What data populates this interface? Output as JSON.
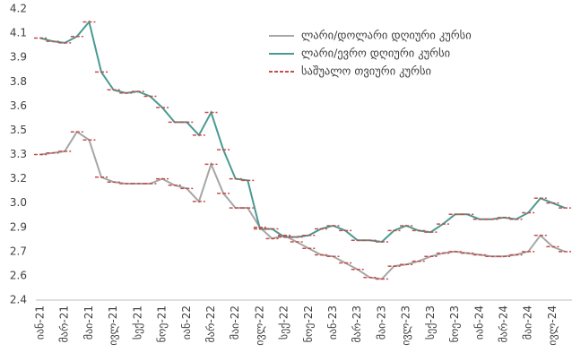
{
  "chart_data": {
    "type": "line",
    "categories": [
      "იან-21",
      null,
      "მარ-21",
      null,
      "მაი-21",
      null,
      "ივლ-21",
      null,
      "სექ-21",
      null,
      "ნოე-21",
      null,
      "იან-22",
      null,
      "მარ-22",
      null,
      "მაი-22",
      null,
      "ივლ-22",
      null,
      "სექ-22",
      null,
      "ნოე-22",
      null,
      "იან-23",
      null,
      "მარ-23",
      null,
      "მაი-23",
      null,
      "ივლ-23",
      null,
      "სექ-23",
      null,
      "ნოე-23",
      null,
      "იან-24",
      null,
      "მარ-24",
      null,
      "მაი-24",
      null,
      "ივლ-24",
      null
    ],
    "series": [
      {
        "name": "ლარი/დოლარი დღიური კურსი",
        "color": "#a6a6a6",
        "values": [
          3.3,
          3.31,
          3.32,
          3.44,
          3.39,
          3.16,
          3.13,
          3.12,
          3.12,
          3.12,
          3.15,
          3.11,
          3.09,
          3.01,
          3.24,
          3.06,
          2.97,
          2.97,
          2.85,
          2.78,
          2.8,
          2.76,
          2.72,
          2.68,
          2.67,
          2.63,
          2.59,
          2.54,
          2.53,
          2.61,
          2.62,
          2.64,
          2.67,
          2.69,
          2.7,
          2.69,
          2.68,
          2.67,
          2.67,
          2.68,
          2.7,
          2.8,
          2.73,
          2.7
        ]
      },
      {
        "name": "ლარი/ევრო დღიური კურსი",
        "color": "#4a9a93",
        "values": [
          4.02,
          4.0,
          3.99,
          4.03,
          4.12,
          3.81,
          3.7,
          3.68,
          3.69,
          3.66,
          3.59,
          3.5,
          3.5,
          3.42,
          3.56,
          3.33,
          3.15,
          3.14,
          2.84,
          2.84,
          2.79,
          2.79,
          2.8,
          2.84,
          2.86,
          2.83,
          2.77,
          2.77,
          2.76,
          2.83,
          2.86,
          2.83,
          2.82,
          2.87,
          2.93,
          2.93,
          2.9,
          2.9,
          2.91,
          2.9,
          2.94,
          3.03,
          3.0,
          2.97
        ]
      },
      {
        "name": "საშუალო თვიური კურსი",
        "color": "#c0504d",
        "dashed": true,
        "values": [
          3.3,
          3.31,
          3.32,
          3.44,
          3.39,
          3.16,
          3.13,
          3.12,
          3.12,
          3.12,
          3.15,
          3.11,
          3.09,
          3.01,
          3.24,
          3.06,
          2.97,
          2.97,
          2.85,
          2.78,
          2.8,
          2.76,
          2.72,
          2.68,
          2.67,
          2.63,
          2.59,
          2.54,
          2.53,
          2.61,
          2.62,
          2.64,
          2.67,
          2.69,
          2.7,
          2.69,
          2.68,
          2.67,
          2.67,
          2.68,
          2.7,
          2.8,
          2.73,
          2.7
        ],
        "values_eur": [
          4.02,
          4.0,
          3.99,
          4.03,
          4.12,
          3.81,
          3.7,
          3.68,
          3.69,
          3.66,
          3.59,
          3.5,
          3.5,
          3.42,
          3.56,
          3.33,
          3.15,
          3.14,
          2.84,
          2.84,
          2.79,
          2.79,
          2.8,
          2.84,
          2.86,
          2.83,
          2.77,
          2.77,
          2.76,
          2.83,
          2.86,
          2.83,
          2.82,
          2.87,
          2.93,
          2.93,
          2.9,
          2.9,
          2.91,
          2.9,
          2.94,
          3.03,
          3.0,
          2.97
        ]
      }
    ],
    "ylim": [
      2.4,
      4.2
    ],
    "yticks": [
      2.4,
      {
        "value": 2.55,
        "label": "2.6"
      },
      2.7,
      {
        "value": 2.85,
        "label": "2.9"
      },
      {
        "value": 3,
        "label": "3.0"
      },
      {
        "value": 3.15,
        "label": "3.2"
      },
      3.3,
      {
        "value": 3.45,
        "label": "3.5"
      },
      3.6,
      {
        "value": 3.75,
        "label": "3.8"
      },
      3.9,
      {
        "value": 4.05,
        "label": "4.1"
      },
      4.2
    ],
    "legend": "upper right",
    "grid": false
  }
}
